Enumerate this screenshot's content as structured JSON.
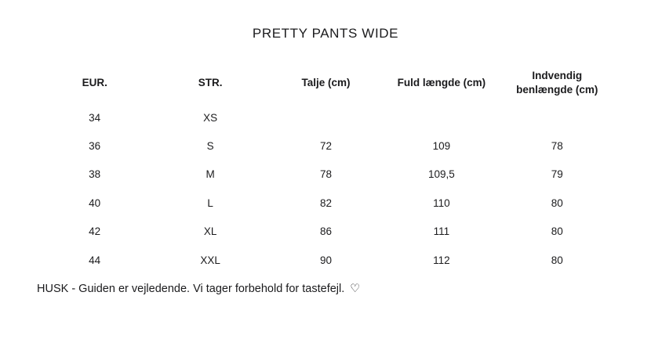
{
  "page": {
    "title": "PRETTY PANTS WIDE"
  },
  "colors": {
    "background": "#ffffff",
    "text": "#1b1b1d"
  },
  "table": {
    "headers": [
      [
        "EUR."
      ],
      [
        "STR."
      ],
      [
        "Talje (cm)"
      ],
      [
        "Fuld længde (cm)"
      ],
      [
        "Indvendig",
        "benlængde (cm)"
      ]
    ],
    "rows": [
      [
        "34",
        "XS",
        "",
        "",
        ""
      ],
      [
        "36",
        "S",
        "72",
        "109",
        "78"
      ],
      [
        "38",
        "M",
        "78",
        "109,5",
        "79"
      ],
      [
        "40",
        "L",
        "82",
        "110",
        "80"
      ],
      [
        "42",
        "XL",
        "86",
        "111",
        "80"
      ],
      [
        "44",
        "XXL",
        "90",
        "112",
        "80"
      ]
    ]
  },
  "footer": {
    "note": "HUSK - Guiden er vejledende. Vi tager forbehold for tastefejl.",
    "heart": "♡"
  }
}
